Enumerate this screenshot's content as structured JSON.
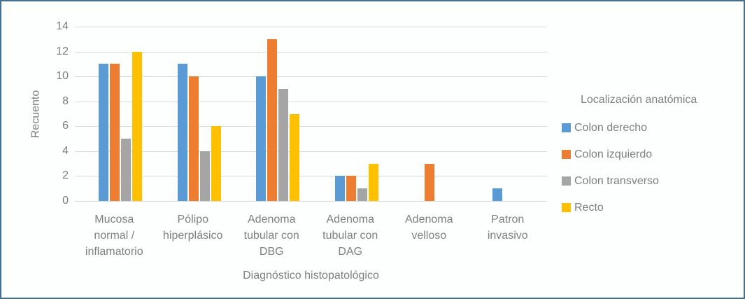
{
  "window": {
    "border_color": "#44708F",
    "background": "#FDFEFE"
  },
  "chart_data": {
    "type": "bar",
    "title": "",
    "xlabel": "Diagnóstico histopatológico",
    "ylabel": "Recuento",
    "ylim": [
      0,
      14
    ],
    "yticks": [
      0,
      2,
      4,
      6,
      8,
      10,
      12,
      14
    ],
    "grid": true,
    "legend_position": "right",
    "legend_title": "Localización anatómica",
    "categories": [
      "Mucosa\nnormal /\ninflamatorio",
      "Pólipo\nhiperplásico",
      "Adenoma\ntubular con\nDBG",
      "Adenoma\ntubular con\nDAG",
      "Adenoma\nvelloso",
      "Patron\ninvasivo"
    ],
    "series": [
      {
        "name": "Colon derecho",
        "color": "#5B9BD5",
        "values": [
          11,
          11,
          10,
          2,
          0,
          1
        ]
      },
      {
        "name": "Colon izquierdo",
        "color": "#ED7D31",
        "values": [
          11,
          10,
          13,
          2,
          3,
          0
        ]
      },
      {
        "name": "Colon transverso",
        "color": "#A5A5A5",
        "values": [
          5,
          4,
          9,
          1,
          0,
          0
        ]
      },
      {
        "name": "Recto",
        "color": "#FFC000",
        "values": [
          12,
          6,
          7,
          3,
          0,
          0
        ]
      }
    ],
    "colors": {
      "text": "#7F7F7F",
      "gridline": "#D9D9D9"
    }
  }
}
